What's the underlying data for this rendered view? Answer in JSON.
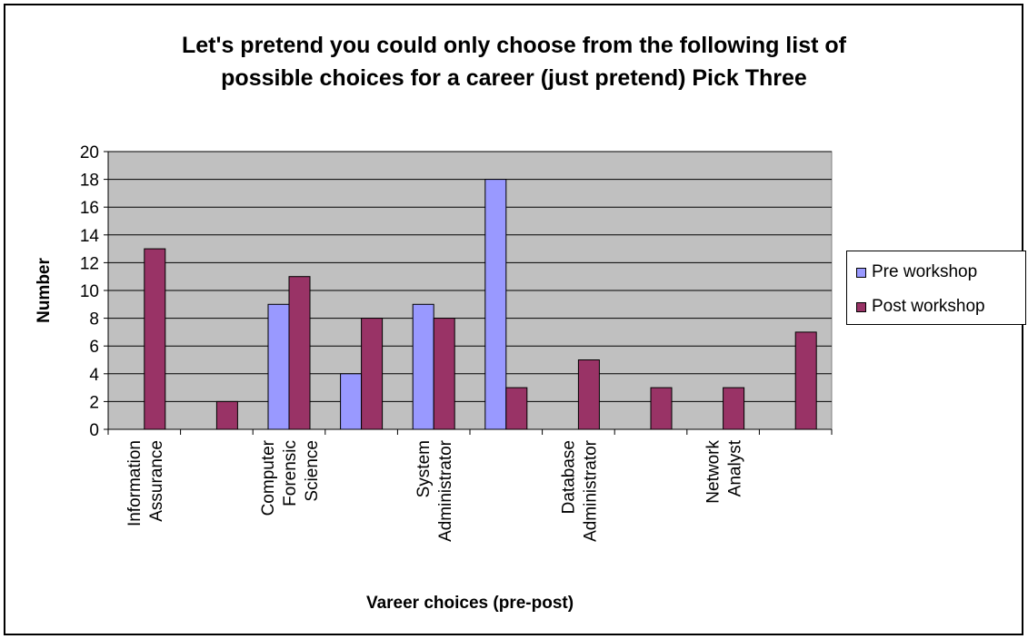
{
  "chart_data": {
    "type": "bar",
    "title": "Let's pretend you could only choose from the following list of possible choices for a career (just pretend) Pick Three",
    "title_lines": [
      "Let's pretend you could only choose from the following list of",
      "possible choices for a career (just pretend) Pick Three"
    ],
    "xlabel": "Vareer choices (pre-post)",
    "ylabel": "Number",
    "ylim": [
      0,
      20
    ],
    "yticks": [
      0,
      2,
      4,
      6,
      8,
      10,
      12,
      14,
      16,
      18,
      20
    ],
    "grid": true,
    "legend_position": "right",
    "plot_background": "#c0c0c0",
    "categories": [
      [
        "Information",
        "Assurance"
      ],
      [],
      [
        "Computer",
        "Forensic",
        "Science"
      ],
      [],
      [
        "System",
        "Administrator"
      ],
      [],
      [
        "Database",
        "Administrator"
      ],
      [],
      [
        "Network",
        "Analyst"
      ],
      []
    ],
    "series": [
      {
        "name": "Pre workshop",
        "color": "#9999ff",
        "values": [
          0,
          0,
          9,
          4,
          9,
          18,
          0,
          0,
          0,
          0
        ]
      },
      {
        "name": "Post workshop",
        "color": "#993366",
        "values": [
          13,
          2,
          11,
          8,
          8,
          3,
          5,
          3,
          3,
          7
        ]
      }
    ]
  }
}
